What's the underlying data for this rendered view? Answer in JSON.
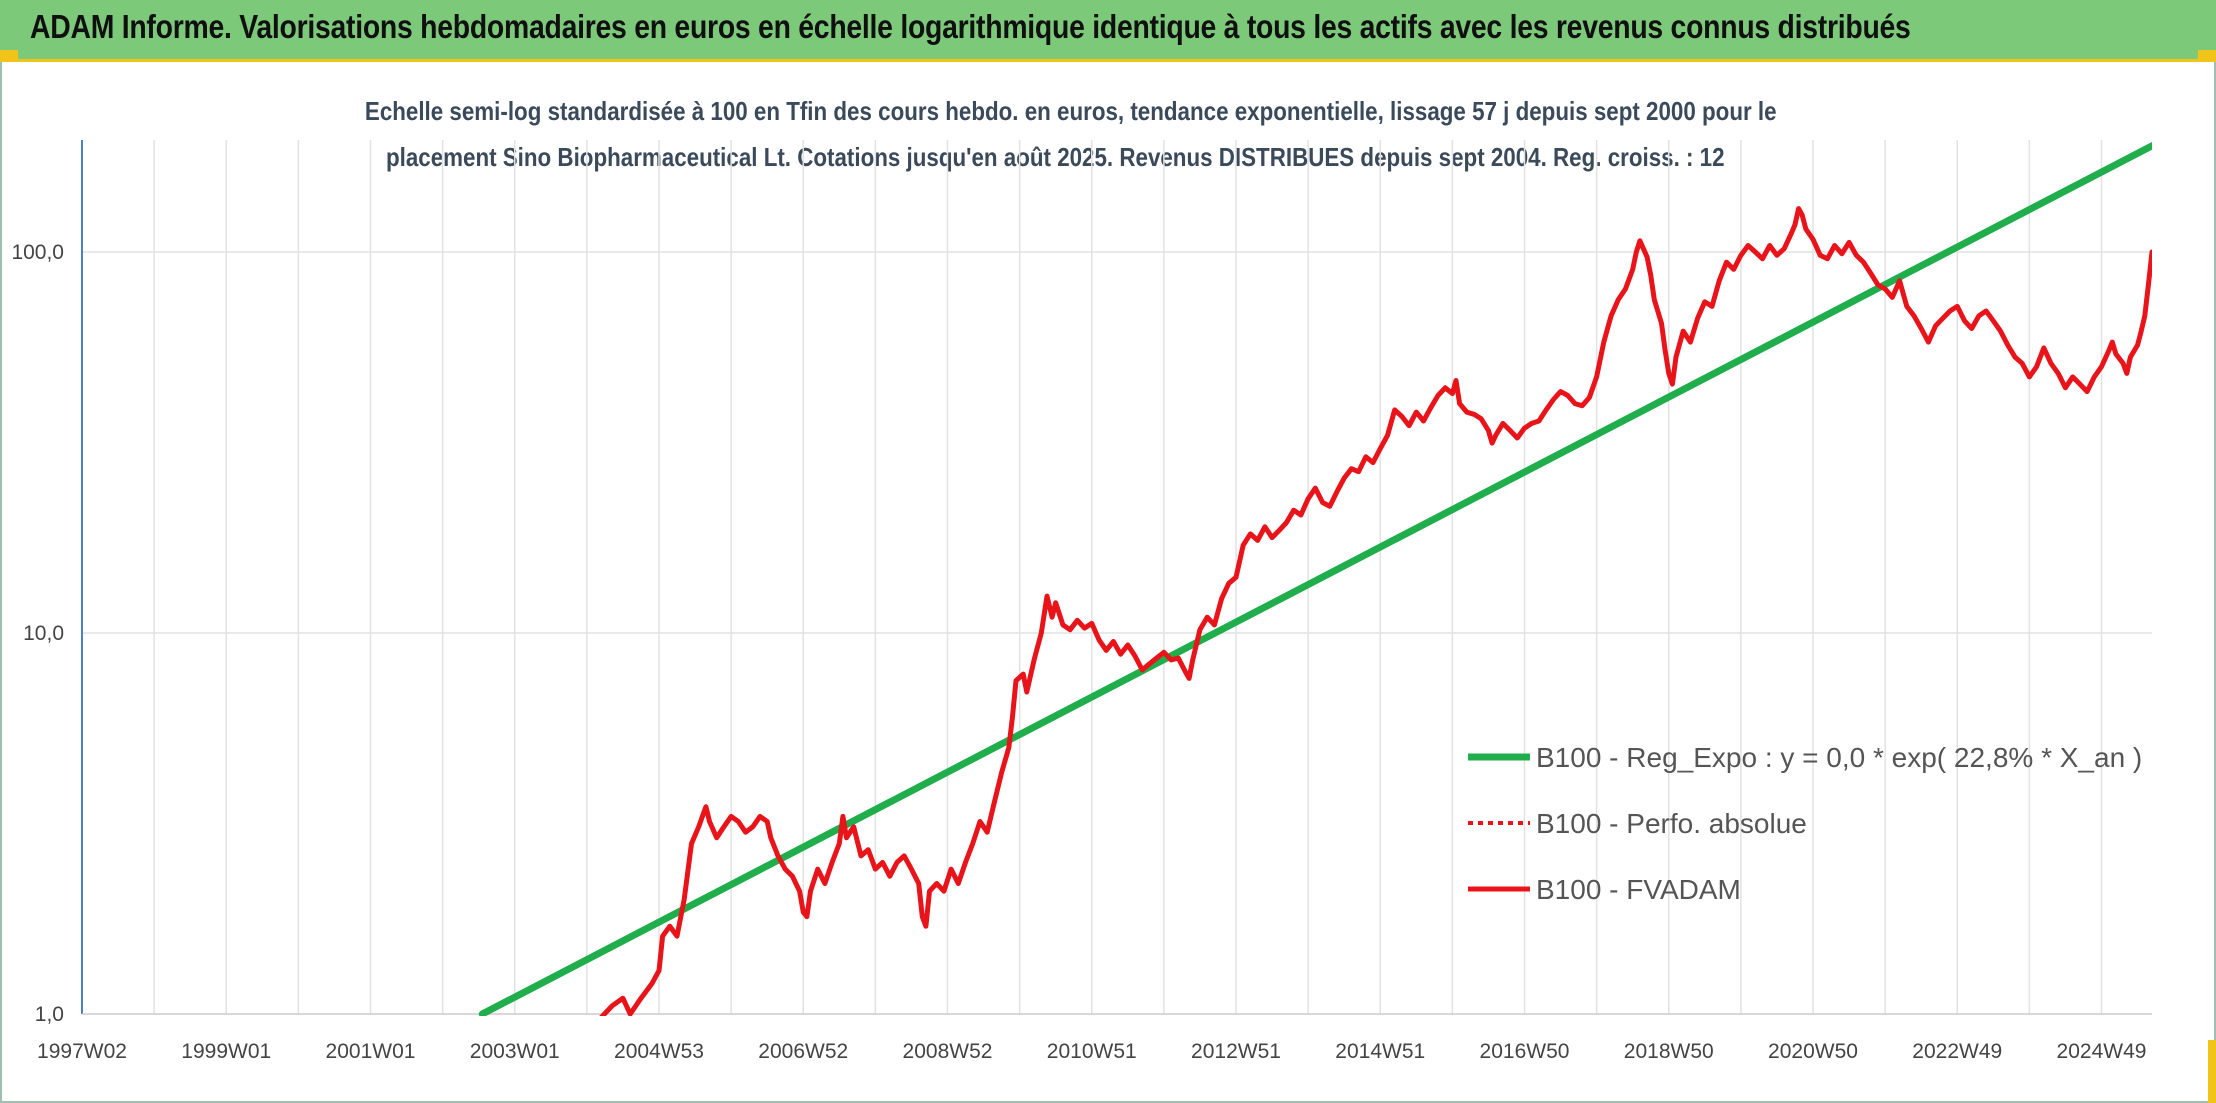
{
  "header": {
    "title": "ADAM Informe. Valorisations hebdomadaires en euros en échelle logarithmique identique à tous les actifs avec les revenus connus distribués"
  },
  "colors": {
    "header_bg": "#7dc97a",
    "accent_yellow": "#f0c419",
    "regression": "#1fae4b",
    "fvadam": "#e8141a",
    "perfo": "#e8141a",
    "gridline": "#e2e2e2"
  },
  "chart_data": {
    "type": "line",
    "title_line1": "Echelle semi-log standardisée à 100 en Tfin des cours hebdo. en euros, tendance exponentielle, lissage 57 j depuis sept 2000 pour le",
    "title_line2": "placement Sino Biopharmaceutical Lt. Cotations jusqu'en août 2025. Revenus DISTRIBUES depuis sept 2004. Reg. croiss. : 12",
    "y_scale": "log",
    "ylim": [
      1,
      200
    ],
    "y_ticks": [
      {
        "value": 1,
        "label": "1,0"
      },
      {
        "value": 10,
        "label": "10,0"
      },
      {
        "value": 100,
        "label": "100,0"
      }
    ],
    "xlim": [
      1997.0,
      2025.7
    ],
    "x_ticks": [
      {
        "value": 1997.0,
        "label": "1997W02"
      },
      {
        "value": 1999.0,
        "label": "1999W01"
      },
      {
        "value": 2001.0,
        "label": "2001W01"
      },
      {
        "value": 2003.0,
        "label": "2003W01"
      },
      {
        "value": 2005.0,
        "label": "2004W53"
      },
      {
        "value": 2007.0,
        "label": "2006W52"
      },
      {
        "value": 2009.0,
        "label": "2008W52"
      },
      {
        "value": 2011.0,
        "label": "2010W51"
      },
      {
        "value": 2013.0,
        "label": "2012W51"
      },
      {
        "value": 2015.0,
        "label": "2014W51"
      },
      {
        "value": 2017.0,
        "label": "2016W50"
      },
      {
        "value": 2019.0,
        "label": "2018W50"
      },
      {
        "value": 2021.0,
        "label": "2020W50"
      },
      {
        "value": 2023.0,
        "label": "2022W49"
      },
      {
        "value": 2025.0,
        "label": "2024W49"
      }
    ],
    "legend_position": "right",
    "legend": [
      {
        "key": "regression",
        "label": "B100 - Reg_Expo : y = 0,0 * exp( 22,8% *  X_an )",
        "style": "solid"
      },
      {
        "key": "perfo",
        "label": "B100 - Perfo. absolue",
        "style": "dotted"
      },
      {
        "key": "fvadam",
        "label": "B100 - FVADAM",
        "style": "solid"
      }
    ],
    "series": [
      {
        "key": "regression",
        "name": "B100 - Reg_Expo : y = 0,0 * exp( 22,8% *  X_an )",
        "points": [
          [
            2002.55,
            1.0
          ],
          [
            2025.7,
            190
          ]
        ]
      },
      {
        "key": "fvadam",
        "name": "B100 - FVADAM",
        "points": [
          [
            2004.2,
            0.98
          ],
          [
            2004.35,
            1.05
          ],
          [
            2004.5,
            1.1
          ],
          [
            2004.6,
            1.0
          ],
          [
            2004.75,
            1.1
          ],
          [
            2004.9,
            1.2
          ],
          [
            2005.0,
            1.3
          ],
          [
            2005.05,
            1.6
          ],
          [
            2005.15,
            1.7
          ],
          [
            2005.25,
            1.6
          ],
          [
            2005.35,
            2.0
          ],
          [
            2005.45,
            2.8
          ],
          [
            2005.55,
            3.1
          ],
          [
            2005.65,
            3.5
          ],
          [
            2005.7,
            3.2
          ],
          [
            2005.8,
            2.9
          ],
          [
            2005.9,
            3.1
          ],
          [
            2006.0,
            3.3
          ],
          [
            2006.1,
            3.2
          ],
          [
            2006.2,
            3.0
          ],
          [
            2006.3,
            3.1
          ],
          [
            2006.4,
            3.3
          ],
          [
            2006.5,
            3.2
          ],
          [
            2006.55,
            2.9
          ],
          [
            2006.65,
            2.6
          ],
          [
            2006.75,
            2.4
          ],
          [
            2006.85,
            2.3
          ],
          [
            2006.95,
            2.1
          ],
          [
            2007.0,
            1.85
          ],
          [
            2007.05,
            1.8
          ],
          [
            2007.1,
            2.1
          ],
          [
            2007.2,
            2.4
          ],
          [
            2007.3,
            2.2
          ],
          [
            2007.4,
            2.5
          ],
          [
            2007.5,
            2.8
          ],
          [
            2007.55,
            3.3
          ],
          [
            2007.6,
            2.9
          ],
          [
            2007.7,
            3.1
          ],
          [
            2007.8,
            2.6
          ],
          [
            2007.9,
            2.7
          ],
          [
            2008.0,
            2.4
          ],
          [
            2008.1,
            2.5
          ],
          [
            2008.2,
            2.3
          ],
          [
            2008.3,
            2.5
          ],
          [
            2008.4,
            2.6
          ],
          [
            2008.5,
            2.4
          ],
          [
            2008.6,
            2.2
          ],
          [
            2008.65,
            1.8
          ],
          [
            2008.7,
            1.7
          ],
          [
            2008.75,
            2.1
          ],
          [
            2008.85,
            2.2
          ],
          [
            2008.95,
            2.1
          ],
          [
            2009.05,
            2.4
          ],
          [
            2009.15,
            2.2
          ],
          [
            2009.25,
            2.5
          ],
          [
            2009.35,
            2.8
          ],
          [
            2009.45,
            3.2
          ],
          [
            2009.55,
            3.0
          ],
          [
            2009.65,
            3.6
          ],
          [
            2009.75,
            4.3
          ],
          [
            2009.85,
            5.0
          ],
          [
            2009.9,
            6.0
          ],
          [
            2009.95,
            7.5
          ],
          [
            2010.05,
            7.8
          ],
          [
            2010.1,
            7.0
          ],
          [
            2010.2,
            8.5
          ],
          [
            2010.3,
            10.0
          ],
          [
            2010.38,
            12.5
          ],
          [
            2010.45,
            11.0
          ],
          [
            2010.5,
            12.0
          ],
          [
            2010.6,
            10.5
          ],
          [
            2010.7,
            10.2
          ],
          [
            2010.8,
            10.8
          ],
          [
            2010.9,
            10.3
          ],
          [
            2011.0,
            10.6
          ],
          [
            2011.1,
            9.6
          ],
          [
            2011.2,
            9.0
          ],
          [
            2011.3,
            9.5
          ],
          [
            2011.4,
            8.8
          ],
          [
            2011.5,
            9.3
          ],
          [
            2011.6,
            8.7
          ],
          [
            2011.7,
            8.0
          ],
          [
            2011.8,
            8.3
          ],
          [
            2011.9,
            8.6
          ],
          [
            2012.0,
            8.9
          ],
          [
            2012.1,
            8.5
          ],
          [
            2012.2,
            8.6
          ],
          [
            2012.3,
            7.9
          ],
          [
            2012.35,
            7.6
          ],
          [
            2012.4,
            8.5
          ],
          [
            2012.5,
            10.2
          ],
          [
            2012.6,
            11.0
          ],
          [
            2012.7,
            10.5
          ],
          [
            2012.8,
            12.3
          ],
          [
            2012.9,
            13.5
          ],
          [
            2013.0,
            14.0
          ],
          [
            2013.1,
            17.0
          ],
          [
            2013.2,
            18.2
          ],
          [
            2013.3,
            17.5
          ],
          [
            2013.4,
            19.0
          ],
          [
            2013.5,
            17.8
          ],
          [
            2013.6,
            18.6
          ],
          [
            2013.7,
            19.5
          ],
          [
            2013.8,
            21.0
          ],
          [
            2013.9,
            20.4
          ],
          [
            2014.0,
            22.5
          ],
          [
            2014.1,
            24.0
          ],
          [
            2014.2,
            22.0
          ],
          [
            2014.3,
            21.5
          ],
          [
            2014.4,
            23.5
          ],
          [
            2014.5,
            25.5
          ],
          [
            2014.6,
            27.0
          ],
          [
            2014.7,
            26.5
          ],
          [
            2014.8,
            29.0
          ],
          [
            2014.9,
            28.0
          ],
          [
            2015.0,
            30.5
          ],
          [
            2015.1,
            33.0
          ],
          [
            2015.2,
            38.5
          ],
          [
            2015.3,
            37.0
          ],
          [
            2015.4,
            35.0
          ],
          [
            2015.5,
            38.0
          ],
          [
            2015.6,
            36.0
          ],
          [
            2015.7,
            39.0
          ],
          [
            2015.8,
            42.0
          ],
          [
            2015.9,
            44.0
          ],
          [
            2016.0,
            42.5
          ],
          [
            2016.05,
            46.0
          ],
          [
            2016.1,
            40.0
          ],
          [
            2016.2,
            38.0
          ],
          [
            2016.3,
            37.5
          ],
          [
            2016.4,
            36.5
          ],
          [
            2016.5,
            34.0
          ],
          [
            2016.55,
            31.5
          ],
          [
            2016.6,
            33.0
          ],
          [
            2016.7,
            35.5
          ],
          [
            2016.8,
            34.0
          ],
          [
            2016.9,
            32.5
          ],
          [
            2017.0,
            34.5
          ],
          [
            2017.1,
            35.5
          ],
          [
            2017.2,
            36.0
          ],
          [
            2017.3,
            38.5
          ],
          [
            2017.4,
            41.0
          ],
          [
            2017.5,
            43.0
          ],
          [
            2017.6,
            42.0
          ],
          [
            2017.7,
            40.0
          ],
          [
            2017.8,
            39.5
          ],
          [
            2017.9,
            41.5
          ],
          [
            2018.0,
            47.0
          ],
          [
            2018.1,
            58.0
          ],
          [
            2018.2,
            68.0
          ],
          [
            2018.3,
            75.0
          ],
          [
            2018.4,
            80.0
          ],
          [
            2018.5,
            90.0
          ],
          [
            2018.55,
            100.0
          ],
          [
            2018.6,
            107.0
          ],
          [
            2018.7,
            97.0
          ],
          [
            2018.75,
            87.0
          ],
          [
            2018.8,
            75.0
          ],
          [
            2018.9,
            65.0
          ],
          [
            2018.95,
            55.0
          ],
          [
            2019.0,
            48.0
          ],
          [
            2019.05,
            45.0
          ],
          [
            2019.1,
            53.0
          ],
          [
            2019.2,
            62.0
          ],
          [
            2019.3,
            58.0
          ],
          [
            2019.4,
            67.0
          ],
          [
            2019.5,
            74.0
          ],
          [
            2019.6,
            72.0
          ],
          [
            2019.7,
            84.0
          ],
          [
            2019.8,
            94.0
          ],
          [
            2019.9,
            90.0
          ],
          [
            2020.0,
            98.0
          ],
          [
            2020.1,
            104.0
          ],
          [
            2020.2,
            100.0
          ],
          [
            2020.3,
            96.0
          ],
          [
            2020.4,
            104.0
          ],
          [
            2020.5,
            98.0
          ],
          [
            2020.6,
            102.0
          ],
          [
            2020.7,
            112.0
          ],
          [
            2020.75,
            118.0
          ],
          [
            2020.8,
            130.0
          ],
          [
            2020.85,
            125.0
          ],
          [
            2020.9,
            115.0
          ],
          [
            2021.0,
            108.0
          ],
          [
            2021.1,
            98.0
          ],
          [
            2021.2,
            96.0
          ],
          [
            2021.3,
            104.0
          ],
          [
            2021.4,
            99.0
          ],
          [
            2021.5,
            106.0
          ],
          [
            2021.6,
            98.0
          ],
          [
            2021.7,
            94.0
          ],
          [
            2021.8,
            88.0
          ],
          [
            2021.9,
            82.0
          ],
          [
            2022.0,
            80.0
          ],
          [
            2022.1,
            76.0
          ],
          [
            2022.2,
            84.0
          ],
          [
            2022.3,
            72.0
          ],
          [
            2022.4,
            68.0
          ],
          [
            2022.5,
            63.0
          ],
          [
            2022.6,
            58.0
          ],
          [
            2022.7,
            64.0
          ],
          [
            2022.8,
            67.0
          ],
          [
            2022.9,
            70.0
          ],
          [
            2023.0,
            72.0
          ],
          [
            2023.1,
            66.0
          ],
          [
            2023.2,
            63.0
          ],
          [
            2023.3,
            68.0
          ],
          [
            2023.4,
            70.0
          ],
          [
            2023.5,
            66.0
          ],
          [
            2023.6,
            62.0
          ],
          [
            2023.7,
            57.0
          ],
          [
            2023.8,
            53.0
          ],
          [
            2023.9,
            51.0
          ],
          [
            2024.0,
            47.0
          ],
          [
            2024.1,
            50.0
          ],
          [
            2024.2,
            56.0
          ],
          [
            2024.3,
            51.0
          ],
          [
            2024.4,
            48.0
          ],
          [
            2024.5,
            44.0
          ],
          [
            2024.6,
            47.0
          ],
          [
            2024.7,
            45.0
          ],
          [
            2024.8,
            43.0
          ],
          [
            2024.9,
            47.0
          ],
          [
            2025.0,
            50.0
          ],
          [
            2025.1,
            55.0
          ],
          [
            2025.15,
            58.0
          ],
          [
            2025.2,
            54.0
          ],
          [
            2025.3,
            51.0
          ],
          [
            2025.35,
            48.0
          ],
          [
            2025.4,
            53.0
          ],
          [
            2025.5,
            57.0
          ],
          [
            2025.55,
            62.0
          ],
          [
            2025.6,
            68.0
          ],
          [
            2025.65,
            82.0
          ],
          [
            2025.7,
            100.0
          ]
        ]
      }
    ]
  }
}
